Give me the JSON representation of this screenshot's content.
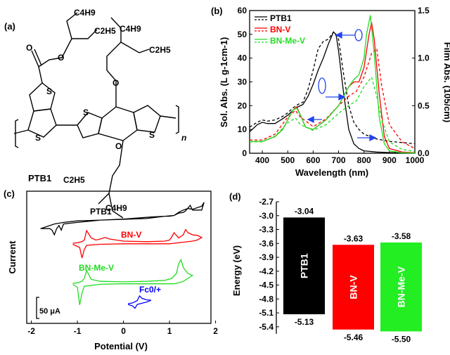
{
  "panel_labels": [
    "(a)",
    "(b)",
    "(c)",
    "(d)"
  ],
  "structure": {
    "name": "PTB1",
    "atoms": {
      "o_ester1": "O",
      "o_ester2": "O",
      "o_side1": "O",
      "o_side2": "O",
      "s_thieno1": "S",
      "s_thieno2": "S",
      "s_bdt1": "S",
      "s_bdt2": "S",
      "n_sub": "n",
      "c4h9_1": "C4H9",
      "c2h5_1": "C2H5",
      "c4h9_2": "C4H9",
      "c2h5_2": "C2H5",
      "c2h5_3": "C2H5",
      "c4h9_3": "C4H9"
    }
  },
  "chart_data": [
    {
      "type": "line",
      "xlabel": "Wavelength (nm)",
      "ylabel_left": "Sol. Abs. (L g-1cm-1)",
      "ylabel_right": "Film Abs. (105/cm)",
      "xlim": [
        350,
        1000
      ],
      "ylim_left": [
        0,
        60
      ],
      "ylim_right": [
        0,
        1.5
      ],
      "xticks": [
        400,
        500,
        600,
        700,
        800,
        900,
        1000
      ],
      "yticks_left": [
        0,
        10,
        20,
        30,
        40,
        50,
        60
      ],
      "yticks_right": [
        "0.0",
        "0.5",
        "1.0",
        "1.5"
      ],
      "legend_position": "top-left",
      "legend": [
        {
          "label": "PTB1",
          "color": "#000000"
        },
        {
          "label": "BN-V",
          "color": "#ff0000"
        },
        {
          "label": "BN-Me-V",
          "color": "#22dd22"
        }
      ],
      "series": [
        {
          "name": "PTB1",
          "style": "solid",
          "axis": "left",
          "color": "#000000",
          "x": [
            350,
            380,
            400,
            420,
            450,
            480,
            500,
            520,
            540,
            560,
            580,
            600,
            620,
            640,
            660,
            680,
            690,
            700,
            720,
            740,
            760,
            780,
            800,
            850,
            900,
            1000
          ],
          "y": [
            9,
            12,
            13,
            12.5,
            12.5,
            14.5,
            16,
            18,
            19.5,
            20.5,
            24,
            29,
            35,
            40,
            46,
            51,
            50,
            43,
            25,
            10,
            4,
            2,
            1,
            0.5,
            0.3,
            0.2
          ]
        },
        {
          "name": "PTB1",
          "style": "dashed",
          "axis": "left",
          "color": "#000000",
          "x": [
            350,
            380,
            400,
            420,
            450,
            480,
            500,
            520,
            540,
            560,
            580,
            600,
            620,
            640,
            660,
            680,
            700,
            720,
            740,
            760,
            780,
            800,
            850,
            900,
            1000
          ],
          "y": [
            11,
            13,
            14,
            13.5,
            14,
            15.5,
            17,
            19,
            20.5,
            21.5,
            27,
            35,
            44,
            47,
            48,
            51,
            48,
            33,
            20,
            13,
            10,
            8,
            6,
            5,
            4
          ]
        },
        {
          "name": "BN-V",
          "style": "solid",
          "axis": "left",
          "color": "#ff0000",
          "x": [
            350,
            400,
            450,
            480,
            500,
            520,
            535,
            550,
            570,
            600,
            650,
            700,
            720,
            740,
            760,
            780,
            800,
            820,
            830,
            840,
            860,
            880,
            900,
            950,
            1000
          ],
          "y": [
            5,
            5,
            7,
            10,
            14,
            18,
            19.5,
            16,
            11,
            10,
            14,
            20,
            24,
            28,
            30,
            30,
            36,
            50,
            55,
            48,
            25,
            7,
            2,
            0.5,
            0.2
          ]
        },
        {
          "name": "BN-V",
          "style": "dashed",
          "axis": "right",
          "color": "#ff0000",
          "x": [
            350,
            400,
            450,
            500,
            530,
            550,
            600,
            650,
            700,
            740,
            770,
            800,
            830,
            850,
            870,
            900,
            950,
            1000
          ],
          "y": [
            0.14,
            0.14,
            0.2,
            0.38,
            0.45,
            0.38,
            0.28,
            0.36,
            0.5,
            0.6,
            0.65,
            0.8,
            1.05,
            1.1,
            0.7,
            0.3,
            0.12,
            0.05
          ]
        },
        {
          "name": "BN-Me-V",
          "style": "solid",
          "axis": "left",
          "color": "#22dd22",
          "x": [
            350,
            400,
            450,
            480,
            500,
            520,
            535,
            550,
            570,
            600,
            650,
            700,
            720,
            740,
            760,
            780,
            800,
            810,
            825,
            840,
            860,
            880,
            900,
            950,
            1000
          ],
          "y": [
            5,
            5,
            7,
            10,
            14,
            18,
            19,
            16,
            11,
            10,
            14,
            20,
            24,
            28,
            31,
            33,
            40,
            50,
            58,
            42,
            15,
            4,
            1,
            0.2,
            0.1
          ]
        },
        {
          "name": "BN-Me-V",
          "style": "dashed",
          "axis": "right",
          "color": "#22dd22",
          "x": [
            350,
            400,
            450,
            500,
            530,
            550,
            600,
            650,
            700,
            740,
            770,
            800,
            830,
            850,
            870,
            900,
            950,
            1000
          ],
          "y": [
            0.12,
            0.12,
            0.18,
            0.32,
            0.37,
            0.3,
            0.24,
            0.3,
            0.42,
            0.5,
            0.55,
            0.7,
            0.8,
            0.6,
            0.35,
            0.12,
            0.04,
            0.02
          ]
        }
      ]
    },
    {
      "type": "line",
      "xlabel": "Potential (V)",
      "ylabel": "Current",
      "xlim": [
        -2.1,
        1.9
      ],
      "xticks": [
        -2,
        -1,
        0,
        1,
        2
      ],
      "scale_bar_label": "50 μA",
      "series": [
        {
          "name": "PTB1",
          "color": "#000000",
          "offset": 0.0,
          "x": [
            -1.8,
            -1.5,
            -1.3,
            -1.0,
            -0.5,
            0.0,
            0.5,
            0.9,
            1.1,
            1.2,
            1.3,
            1.4,
            1.5,
            1.6,
            1.7,
            1.75,
            1.7,
            1.5,
            1.45,
            1.35,
            1.3,
            1.2,
            1.1,
            1.0,
            0.9,
            0.6,
            0.3,
            0.0,
            -0.5,
            -1.0,
            -1.3,
            -1.35,
            -1.4,
            -1.45,
            -1.5,
            -1.55,
            -1.6,
            -1.8
          ],
          "y": [
            -0.6,
            -0.3,
            -0.2,
            -0.1,
            -0.05,
            0,
            0.05,
            0.2,
            0.25,
            0.45,
            0.6,
            0.7,
            0.65,
            0.75,
            0.85,
            1.1,
            0.6,
            0.6,
            0.9,
            0.55,
            0.45,
            0.4,
            0.25,
            0.2,
            0.2,
            0.15,
            0.08,
            0.02,
            -0.05,
            -0.2,
            -0.3,
            -0.7,
            -0.4,
            -0.6,
            -1.0,
            -0.7,
            -0.6,
            -0.6
          ]
        },
        {
          "name": "BN-V",
          "color": "#ff0000",
          "offset": 0.0,
          "x": [
            -1.1,
            -1.0,
            -0.9,
            -0.85,
            -0.8,
            -0.7,
            -0.6,
            -0.5,
            -0.4,
            -0.3,
            0.0,
            0.5,
            0.9,
            1.0,
            1.05,
            1.1,
            1.2,
            1.3,
            1.35,
            1.4,
            1.5,
            1.6,
            1.7,
            1.6,
            1.5,
            1.3,
            1.2,
            1.1,
            1.0,
            0.5,
            0.0,
            -0.5,
            -0.8,
            -0.85,
            -0.9,
            -0.95,
            -1.1
          ],
          "y": [
            0,
            0.05,
            0.15,
            0.3,
            1.2,
            0.5,
            0.3,
            0.4,
            0.55,
            0.4,
            0.2,
            0.15,
            0.2,
            0.3,
            0.6,
            1.0,
            0.5,
            0.8,
            1.3,
            1.0,
            0.8,
            0.75,
            0.55,
            0.3,
            0.2,
            0.1,
            0.05,
            0.0,
            -0.05,
            -0.05,
            -0.05,
            -0.1,
            -0.2,
            -0.6,
            -1.4,
            -0.4,
            -0.1
          ]
        },
        {
          "name": "BN-Me-V",
          "color": "#22dd22",
          "offset": 0.0,
          "x": [
            -1.1,
            -1.0,
            -0.9,
            -0.85,
            -0.8,
            -0.7,
            -0.5,
            0.0,
            0.5,
            0.9,
            1.05,
            1.15,
            1.2,
            1.25,
            1.3,
            1.4,
            1.5,
            1.4,
            1.3,
            1.2,
            1.1,
            1.0,
            0.5,
            0.0,
            -0.5,
            -0.85,
            -0.9,
            -0.95,
            -1.0,
            -1.1
          ],
          "y": [
            0,
            0.05,
            0.2,
            0.5,
            1.3,
            0.4,
            0.2,
            0.15,
            0.2,
            0.3,
            0.5,
            1.0,
            2.0,
            2.4,
            1.6,
            1.0,
            0.8,
            0.5,
            0.2,
            0.05,
            -0.05,
            -0.05,
            -0.05,
            -0.05,
            -0.1,
            -0.3,
            -1.0,
            -2.2,
            -0.4,
            -0.1
          ]
        },
        {
          "name": "Fc0/+",
          "color": "#0000ff",
          "offset": 0.0,
          "x": [
            0.1,
            0.2,
            0.3,
            0.35,
            0.4,
            0.5,
            0.6,
            0.5,
            0.4,
            0.3,
            0.25,
            0.2,
            0.1
          ],
          "y": [
            0.0,
            0.1,
            0.4,
            1.0,
            0.7,
            0.5,
            0.45,
            0.2,
            0.05,
            -0.1,
            -0.6,
            -0.3,
            -0.1
          ]
        }
      ],
      "labels": [
        {
          "text": "PTB1",
          "color": "#000000"
        },
        {
          "text": "BN-V",
          "color": "#ff0000"
        },
        {
          "text": "BN-Me-V",
          "color": "#22dd22"
        },
        {
          "text": "Fc0/+",
          "color": "#0000ff"
        }
      ]
    },
    {
      "type": "bar",
      "ylabel": "Energy (eV)",
      "ylim": [
        -5.6,
        -2.7
      ],
      "yticks": [
        "-2.7",
        "-3.0",
        "-3.3",
        "-3.6",
        "-3.9",
        "-4.2",
        "-4.5",
        "-4.8",
        "-5.1",
        "-5.4"
      ],
      "categories": [
        "PTB1",
        "BN-V",
        "BN-Me-V"
      ],
      "lumo": [
        -3.04,
        -3.63,
        -3.58
      ],
      "homo": [
        -5.13,
        -5.46,
        -5.5
      ],
      "lumo_labels": [
        "-3.04",
        "-3.63",
        "-3.58"
      ],
      "homo_labels": [
        "-5.13",
        "-5.46",
        "-5.50"
      ],
      "colors": [
        "#000000",
        "#ff0000",
        "#22ee22"
      ]
    }
  ]
}
